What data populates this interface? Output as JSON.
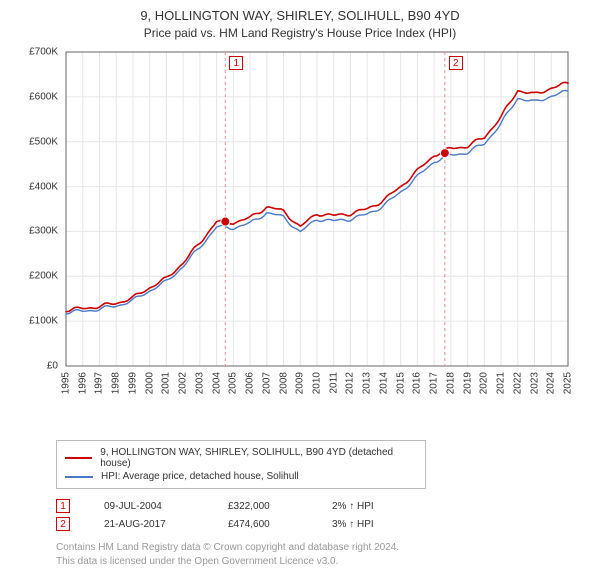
{
  "title_line1": "9, HOLLINGTON WAY, SHIRLEY, SOLIHULL, B90 4YD",
  "title_line2": "Price paid vs. HM Land Registry's House Price Index (HPI)",
  "chart": {
    "type": "line",
    "plot_background": "#ffffff",
    "grid_color": "#e6e6e6",
    "axis_color": "#666666",
    "tick_font_size": 10,
    "x": {
      "min": 1995,
      "max": 2025,
      "ticks": [
        1995,
        1996,
        1997,
        1998,
        1999,
        2000,
        2001,
        2002,
        2003,
        2004,
        2005,
        2006,
        2007,
        2008,
        2009,
        2010,
        2011,
        2012,
        2013,
        2014,
        2015,
        2016,
        2017,
        2018,
        2019,
        2020,
        2021,
        2022,
        2023,
        2024,
        2025
      ]
    },
    "y": {
      "min": 0,
      "max": 700,
      "ticks": [
        0,
        100,
        200,
        300,
        400,
        500,
        600,
        700
      ],
      "prefix": "£",
      "suffix": "K"
    },
    "series": [
      {
        "name": "9, HOLLINGTON WAY, SHIRLEY, SOLIHULL, B90 4YD (detached house)",
        "color": "#cc0000",
        "line_width": 1.6,
        "y_by_year": {
          "1995": 125,
          "1996": 128,
          "1997": 133,
          "1998": 140,
          "1999": 152,
          "2000": 175,
          "2001": 195,
          "2002": 230,
          "2003": 275,
          "2004": 322,
          "2005": 320,
          "2006": 330,
          "2007": 355,
          "2008": 345,
          "2009": 310,
          "2010": 340,
          "2011": 335,
          "2012": 340,
          "2013": 350,
          "2014": 370,
          "2015": 400,
          "2016": 435,
          "2017": 470,
          "2018": 485,
          "2019": 490,
          "2020": 510,
          "2021": 555,
          "2022": 615,
          "2023": 605,
          "2024": 620,
          "2025": 630
        }
      },
      {
        "name": "HPI: Average price, detached house, Solihull",
        "color": "#4a79c7",
        "line_width": 1.4,
        "y_by_year": {
          "1995": 120,
          "1996": 122,
          "1997": 127,
          "1998": 134,
          "1999": 146,
          "2000": 168,
          "2001": 188,
          "2002": 222,
          "2003": 265,
          "2004": 310,
          "2005": 308,
          "2006": 318,
          "2007": 342,
          "2008": 332,
          "2009": 298,
          "2010": 328,
          "2011": 323,
          "2012": 328,
          "2013": 338,
          "2014": 358,
          "2015": 388,
          "2016": 422,
          "2017": 456,
          "2018": 470,
          "2019": 476,
          "2020": 496,
          "2021": 540,
          "2022": 598,
          "2023": 588,
          "2024": 602,
          "2025": 612
        }
      }
    ],
    "transactions": [
      {
        "n": "1",
        "date_label": "09-JUL-2004",
        "x": 2004.52,
        "price_value": 322,
        "price_label": "£322,000",
        "delta_label": "2% ↑ HPI",
        "marker_color": "#cc0000",
        "vline_color": "#e28f8f"
      },
      {
        "n": "2",
        "date_label": "21-AUG-2017",
        "x": 2017.64,
        "price_value": 474.6,
        "price_label": "£474,600",
        "delta_label": "3% ↑ HPI",
        "marker_color": "#cc0000",
        "vline_color": "#e28f8f"
      }
    ]
  },
  "legend": {
    "rows": [
      {
        "color": "#cc0000",
        "label": "9, HOLLINGTON WAY, SHIRLEY, SOLIHULL, B90 4YD (detached house)"
      },
      {
        "color": "#4a79c7",
        "label": "HPI: Average price, detached house, Solihull"
      }
    ]
  },
  "attribution_line1": "Contains HM Land Registry data © Crown copyright and database right 2024.",
  "attribution_line2": "This data is licensed under the Open Government Licence v3.0."
}
